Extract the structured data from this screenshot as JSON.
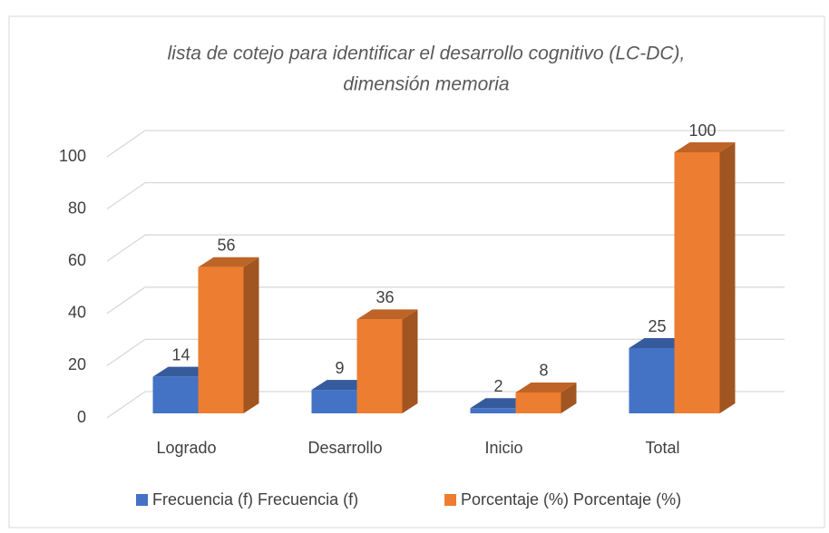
{
  "chart_data": {
    "type": "bar",
    "title": [
      "lista de cotejo para identificar el desarrollo cognitivo (LC-DC),",
      "dimensión memoria"
    ],
    "categories": [
      "Logrado",
      "Desarrollo",
      "Inicio",
      "Total"
    ],
    "series": [
      {
        "name": "Frecuencia (f) Frecuencia (f)",
        "color": "#4472c4",
        "values": [
          14,
          9,
          2,
          25
        ]
      },
      {
        "name": "Porcentaje (%) Porcentaje (%)",
        "color": "#ed7d31",
        "values": [
          56,
          36,
          8,
          100
        ]
      }
    ],
    "ylim": [
      0,
      100
    ],
    "yticks": [
      0,
      20,
      40,
      60,
      80,
      100
    ],
    "grid": true,
    "legend": "bottom"
  }
}
